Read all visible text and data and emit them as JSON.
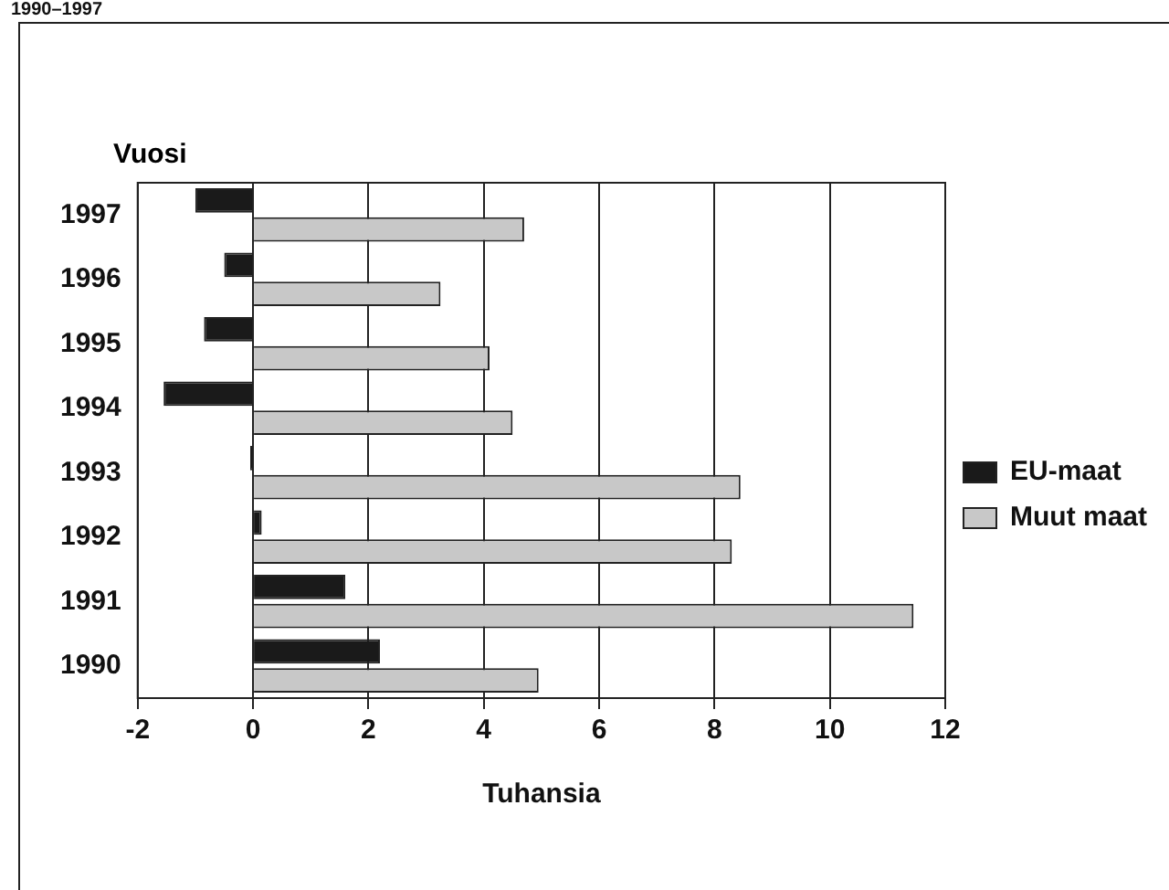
{
  "chart_data": {
    "type": "bar",
    "orientation": "horizontal",
    "title": "1990–1997",
    "ylabel": "Vuosi",
    "xlabel": "Tuhansia",
    "categories": [
      "1997",
      "1996",
      "1995",
      "1994",
      "1993",
      "1992",
      "1991",
      "1990"
    ],
    "series": [
      {
        "name": "EU-maat",
        "color": "#1a1a1a",
        "values": [
          -1.0,
          -0.5,
          -0.85,
          -1.55,
          -0.05,
          0.15,
          1.6,
          2.2
        ]
      },
      {
        "name": "Muut maat",
        "color": "#c8c8c8",
        "values": [
          4.7,
          3.25,
          4.1,
          4.5,
          8.45,
          8.3,
          11.45,
          4.95
        ]
      }
    ],
    "xlim": [
      -2,
      12
    ],
    "xticks": [
      -2,
      0,
      2,
      4,
      6,
      8,
      10,
      12
    ],
    "grid": "x",
    "legend": "right"
  }
}
